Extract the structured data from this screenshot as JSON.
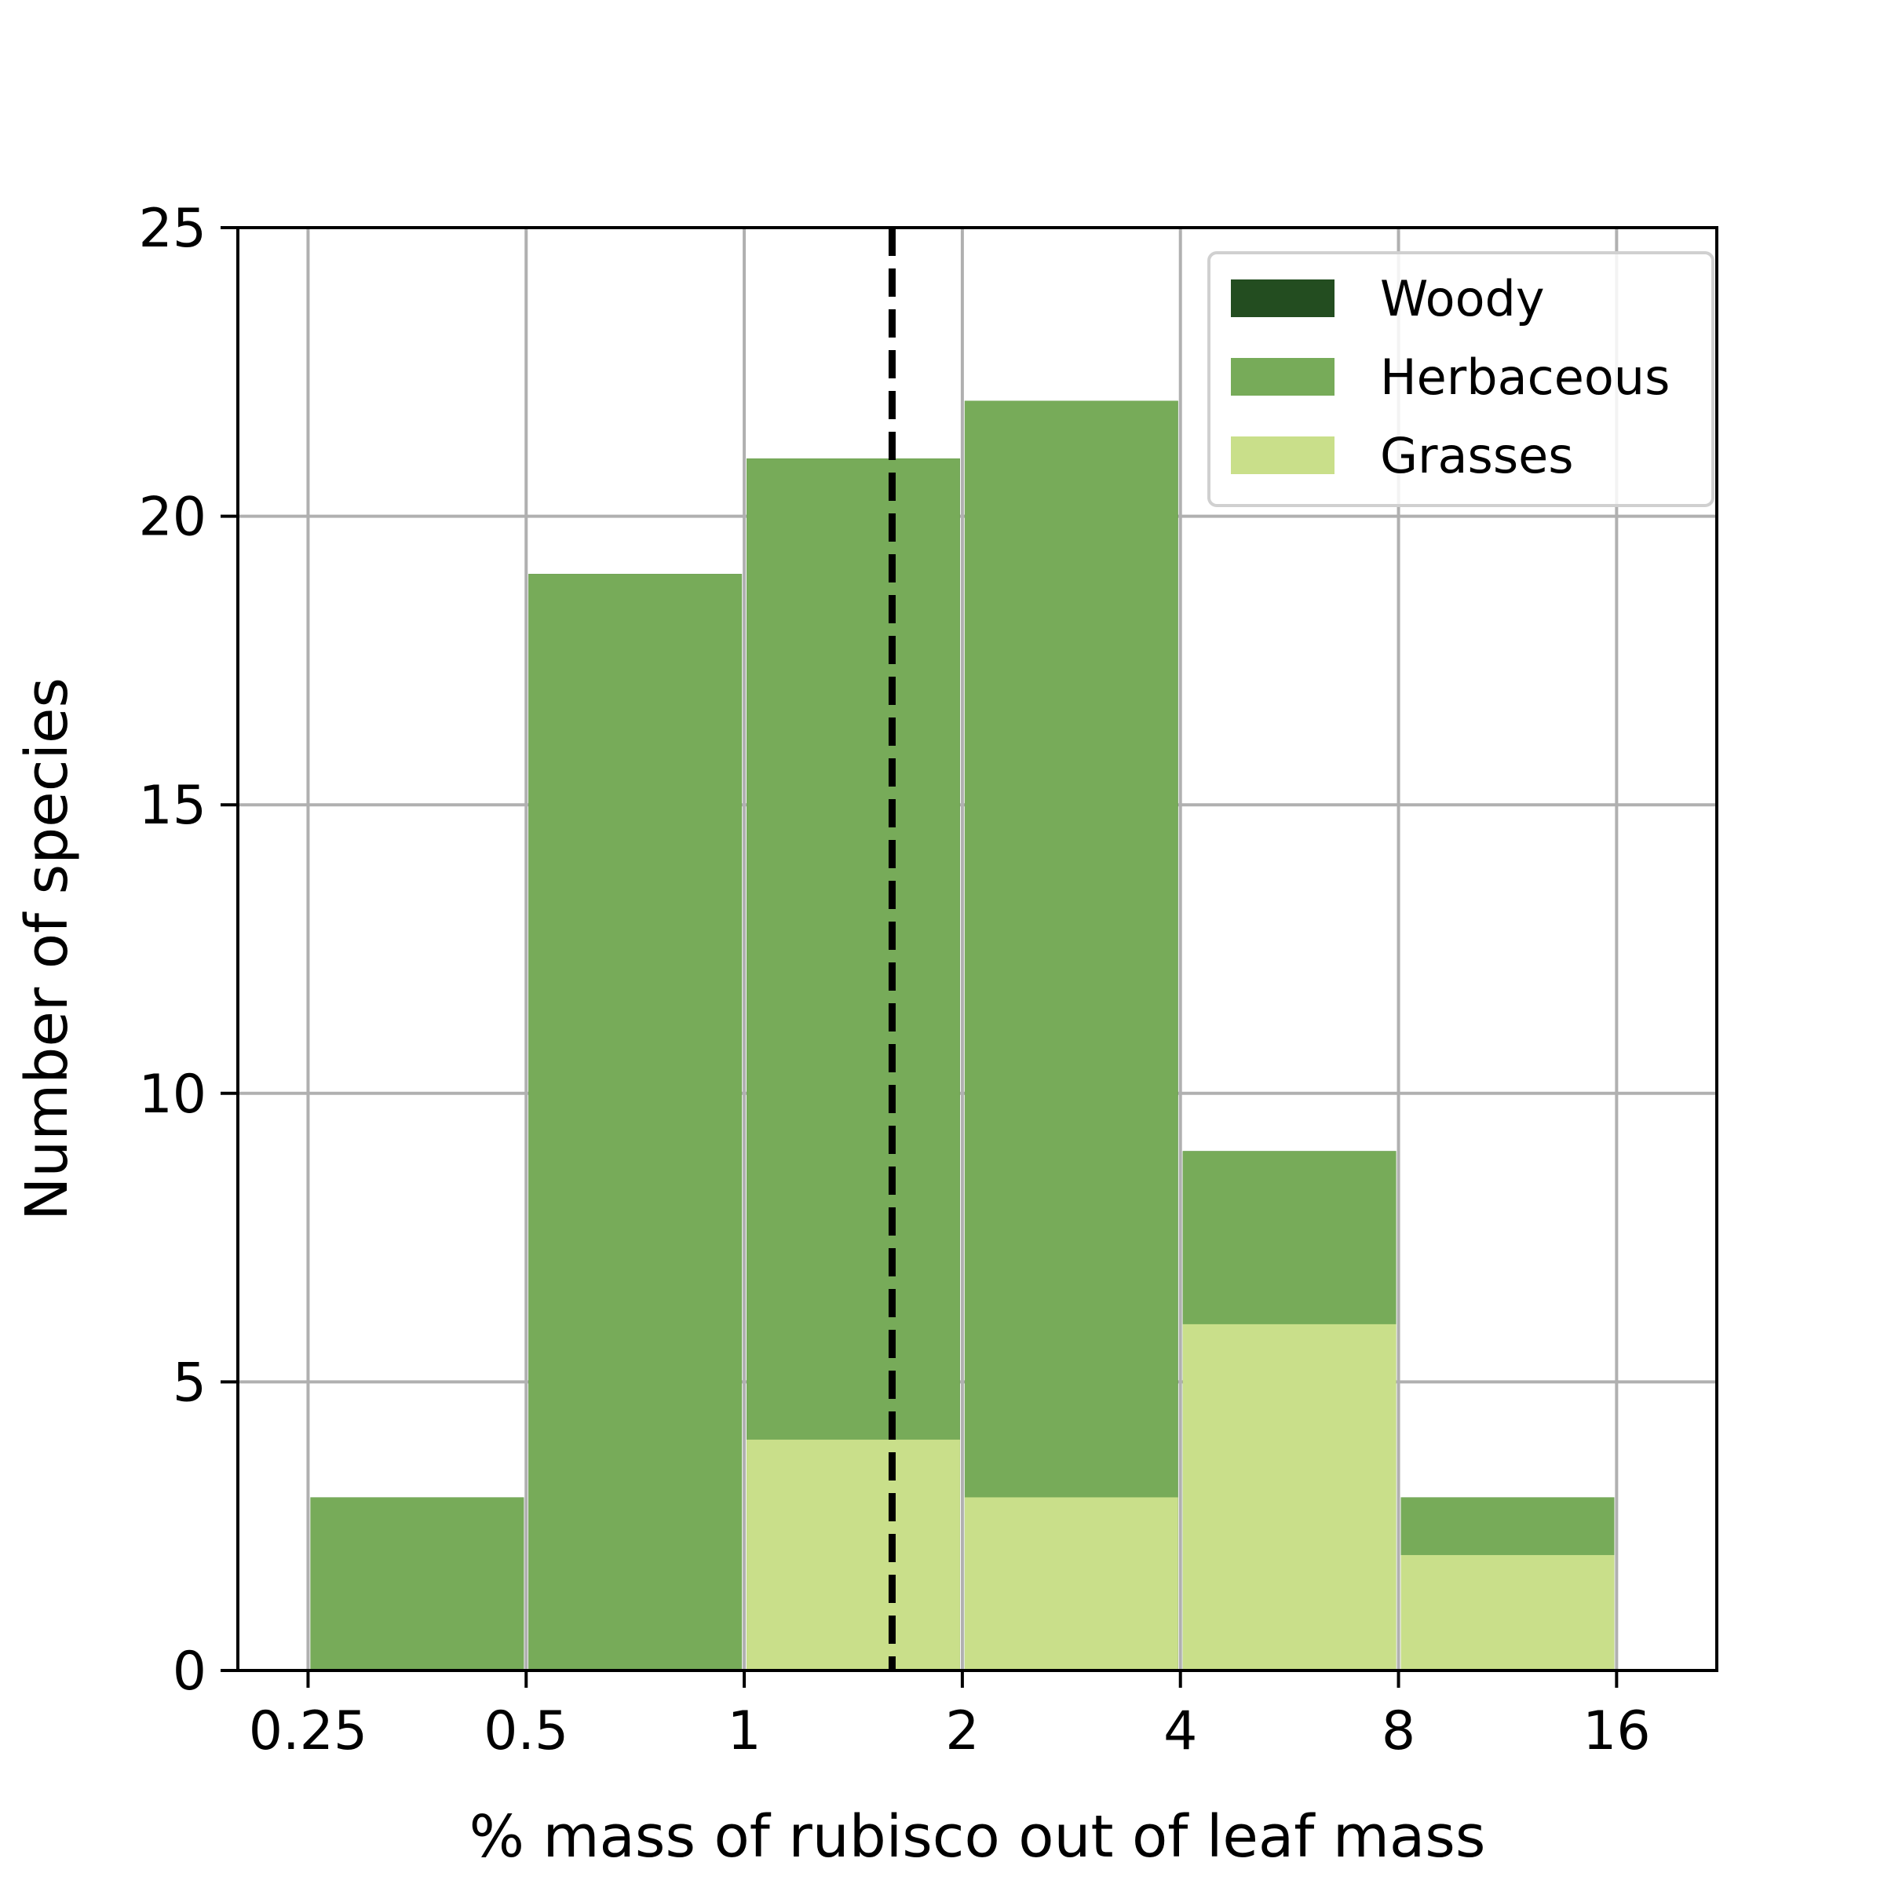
{
  "chart_data": {
    "type": "bar",
    "histogram": true,
    "title": "",
    "xlabel": "% mass of rubisco out of leaf mass",
    "ylabel": "Number of species",
    "xscale": "log2",
    "xlim": [
      0.2,
      22.0
    ],
    "ylim": [
      0,
      25
    ],
    "x_ticks": [
      0.25,
      0.5,
      1,
      2,
      4,
      8,
      16
    ],
    "x_tick_labels": [
      "0.25",
      "0.5",
      "1",
      "2",
      "4",
      "8",
      "16"
    ],
    "y_ticks": [
      0,
      5,
      10,
      15,
      20,
      25
    ],
    "y_tick_labels": [
      "0",
      "5",
      "10",
      "15",
      "20",
      "25"
    ],
    "grid": true,
    "legend_position": "top-right",
    "bin_edges": [
      0.25,
      0.5,
      1,
      2,
      4,
      8,
      16
    ],
    "series": [
      {
        "name": "Woody",
        "color": "#234d20",
        "values": [
          3,
          19,
          21,
          22,
          9,
          3
        ]
      },
      {
        "name": "Herbaceous",
        "color": "#77ab59",
        "values": [
          3,
          19,
          21,
          22,
          9,
          3
        ]
      },
      {
        "name": "Grasses",
        "color": "#c9df8a",
        "values": [
          0,
          0,
          4,
          3,
          6,
          2
        ]
      }
    ],
    "reference_line": {
      "x": 1.6,
      "style": "dashed",
      "color": "#000000"
    }
  }
}
